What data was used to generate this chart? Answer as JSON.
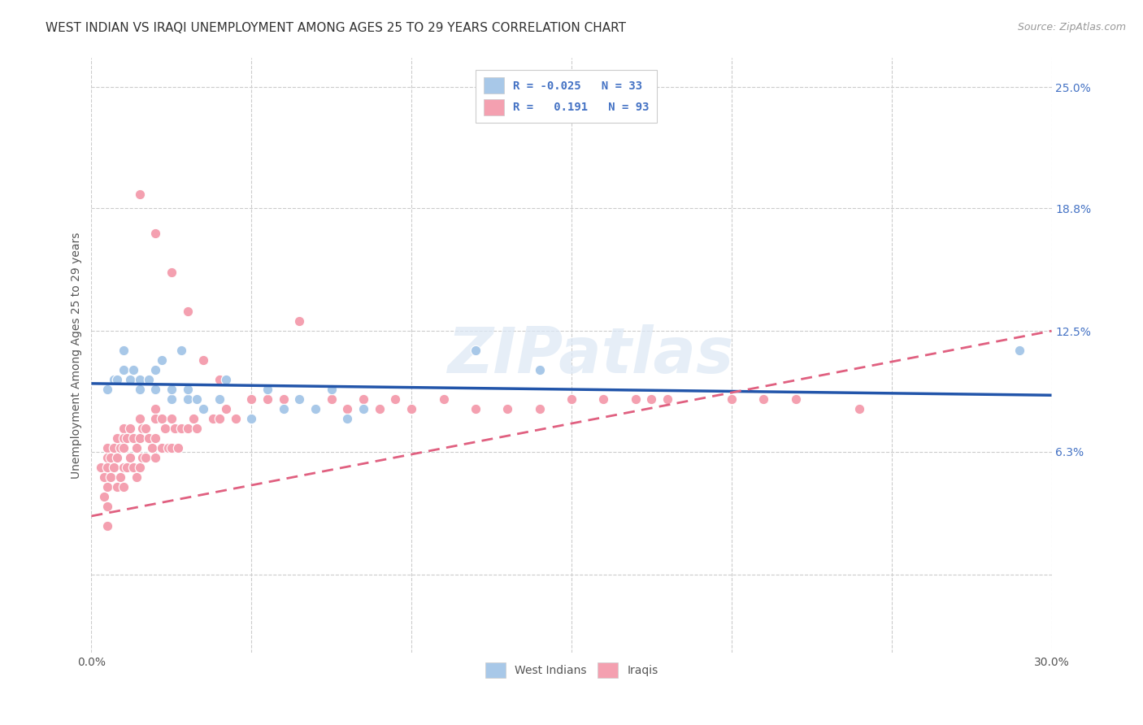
{
  "title": "WEST INDIAN VS IRAQI UNEMPLOYMENT AMONG AGES 25 TO 29 YEARS CORRELATION CHART",
  "source": "Source: ZipAtlas.com",
  "ylabel": "Unemployment Among Ages 25 to 29 years",
  "xlim": [
    0.0,
    0.3
  ],
  "ylim": [
    -0.04,
    0.265
  ],
  "y_tick_vals": [
    0.0,
    0.063,
    0.125,
    0.188,
    0.25
  ],
  "y_tick_labels": [
    "",
    "6.3%",
    "12.5%",
    "18.8%",
    "25.0%"
  ],
  "x_tick_vals": [
    0.0,
    0.05,
    0.1,
    0.15,
    0.2,
    0.25,
    0.3
  ],
  "x_tick_labels": [
    "0.0%",
    "",
    "",
    "",
    "",
    "",
    "30.0%"
  ],
  "watermark": "ZIPatlas",
  "legend_bottom": [
    "West Indians",
    "Iraqis"
  ],
  "west_indian_color": "#a8c8e8",
  "iraqi_color": "#f4a0b0",
  "west_indian_line_color": "#2255aa",
  "iraqi_line_color": "#e06080",
  "grid_color": "#cccccc",
  "background_color": "#ffffff",
  "title_fontsize": 11,
  "source_fontsize": 9,
  "axis_label_fontsize": 10,
  "tick_fontsize": 10,
  "legend_fontsize": 10,
  "wi_n": 33,
  "iq_n": 93,
  "wi_r": -0.025,
  "iq_r": 0.191,
  "wi_x": [
    0.005,
    0.007,
    0.008,
    0.01,
    0.01,
    0.012,
    0.013,
    0.015,
    0.015,
    0.018,
    0.02,
    0.02,
    0.022,
    0.025,
    0.025,
    0.028,
    0.03,
    0.03,
    0.033,
    0.035,
    0.04,
    0.042,
    0.05,
    0.055,
    0.06,
    0.065,
    0.07,
    0.075,
    0.08,
    0.085,
    0.12,
    0.14,
    0.29
  ],
  "wi_y": [
    0.095,
    0.1,
    0.1,
    0.105,
    0.115,
    0.1,
    0.105,
    0.1,
    0.095,
    0.1,
    0.095,
    0.105,
    0.11,
    0.09,
    0.095,
    0.115,
    0.09,
    0.095,
    0.09,
    0.085,
    0.09,
    0.1,
    0.08,
    0.095,
    0.085,
    0.09,
    0.085,
    0.095,
    0.08,
    0.085,
    0.115,
    0.105,
    0.115
  ],
  "iq_x": [
    0.003,
    0.004,
    0.004,
    0.005,
    0.005,
    0.005,
    0.005,
    0.005,
    0.005,
    0.006,
    0.006,
    0.007,
    0.007,
    0.008,
    0.008,
    0.008,
    0.009,
    0.009,
    0.01,
    0.01,
    0.01,
    0.01,
    0.01,
    0.011,
    0.011,
    0.012,
    0.012,
    0.013,
    0.013,
    0.014,
    0.014,
    0.015,
    0.015,
    0.015,
    0.016,
    0.016,
    0.017,
    0.017,
    0.018,
    0.019,
    0.02,
    0.02,
    0.02,
    0.02,
    0.022,
    0.022,
    0.023,
    0.024,
    0.025,
    0.025,
    0.026,
    0.027,
    0.028,
    0.03,
    0.03,
    0.032,
    0.033,
    0.035,
    0.038,
    0.04,
    0.04,
    0.042,
    0.045,
    0.05,
    0.055,
    0.06,
    0.065,
    0.07,
    0.075,
    0.08,
    0.085,
    0.09,
    0.095,
    0.1,
    0.11,
    0.12,
    0.13,
    0.14,
    0.15,
    0.16,
    0.17,
    0.175,
    0.18,
    0.2,
    0.21,
    0.22,
    0.24,
    0.015,
    0.02,
    0.025,
    0.03,
    0.035,
    0.04
  ],
  "iq_y": [
    0.055,
    0.05,
    0.04,
    0.065,
    0.06,
    0.055,
    0.045,
    0.035,
    0.025,
    0.06,
    0.05,
    0.065,
    0.055,
    0.07,
    0.06,
    0.045,
    0.065,
    0.05,
    0.075,
    0.07,
    0.065,
    0.055,
    0.045,
    0.07,
    0.055,
    0.075,
    0.06,
    0.07,
    0.055,
    0.065,
    0.05,
    0.08,
    0.07,
    0.055,
    0.075,
    0.06,
    0.075,
    0.06,
    0.07,
    0.065,
    0.085,
    0.08,
    0.07,
    0.06,
    0.08,
    0.065,
    0.075,
    0.065,
    0.08,
    0.065,
    0.075,
    0.065,
    0.075,
    0.09,
    0.075,
    0.08,
    0.075,
    0.085,
    0.08,
    0.09,
    0.08,
    0.085,
    0.08,
    0.09,
    0.09,
    0.09,
    0.13,
    0.085,
    0.09,
    0.085,
    0.09,
    0.085,
    0.09,
    0.085,
    0.09,
    0.085,
    0.085,
    0.085,
    0.09,
    0.09,
    0.09,
    0.09,
    0.09,
    0.09,
    0.09,
    0.09,
    0.085,
    0.195,
    0.175,
    0.155,
    0.135,
    0.11,
    0.1
  ]
}
